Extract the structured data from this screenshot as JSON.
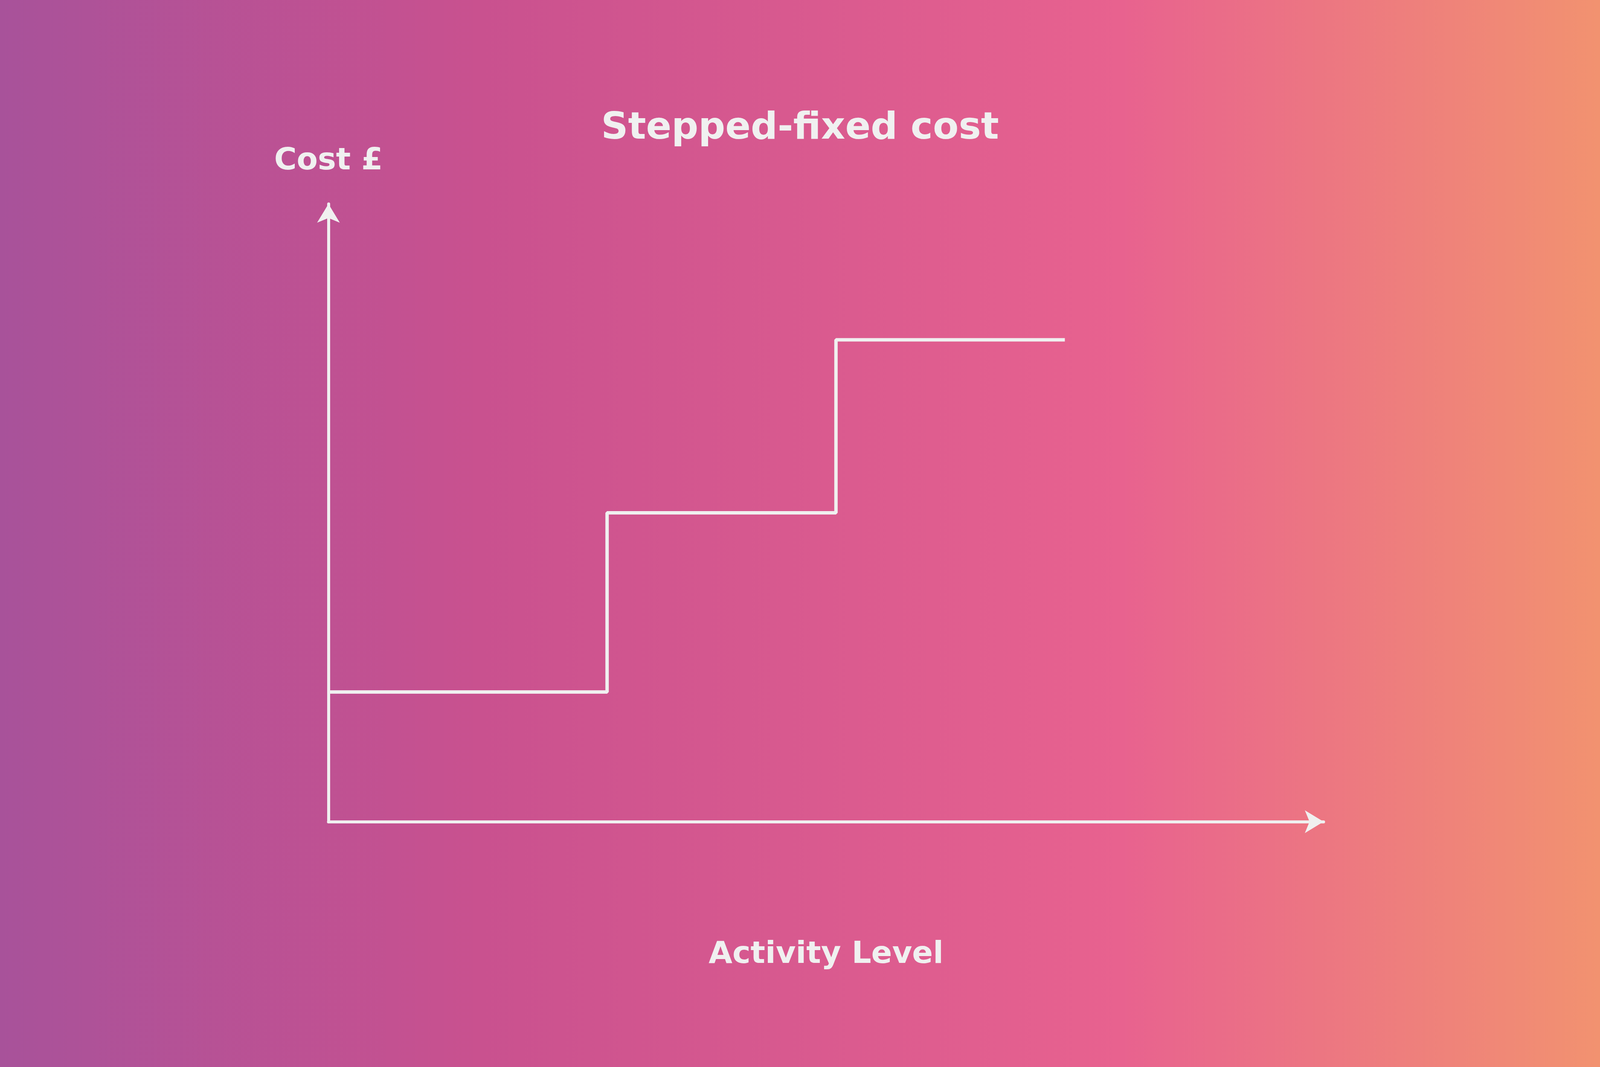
{
  "chart_data": {
    "type": "line",
    "title": "Stepped-fixed cost",
    "x_label": "Activity Level",
    "y_label": "Cost £",
    "x": [
      0,
      2.8,
      5.1,
      7.4
    ],
    "values": [
      2.1,
      5.0,
      7.8,
      7.8
    ],
    "xlim": [
      0,
      10
    ],
    "ylim": [
      0,
      10
    ],
    "color": "#f0f0f0",
    "line_style": "step",
    "grid": false,
    "tick_labels": false
  }
}
